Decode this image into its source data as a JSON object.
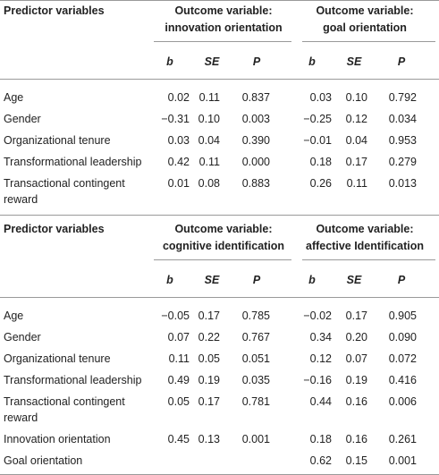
{
  "sections": [
    {
      "header": {
        "predictor": "Predictor variables",
        "outcomes": [
          [
            "Outcome variable:",
            "innovation orientation"
          ],
          [
            "Outcome variable:",
            "goal orientation"
          ]
        ],
        "subheads": [
          "b",
          "SE",
          "P",
          "b",
          "SE",
          "P"
        ]
      },
      "rows": [
        [
          "Age",
          "0.02",
          "0.11",
          "0.837",
          "0.03",
          "0.10",
          "0.792"
        ],
        [
          "Gender",
          "−0.31",
          "0.10",
          "0.003",
          "−0.25",
          "0.12",
          "0.034"
        ],
        [
          "Organizational tenure",
          "0.03",
          "0.04",
          "0.390",
          "−0.01",
          "0.04",
          "0.953"
        ],
        [
          "Transformational leadership",
          "0.42",
          "0.11",
          "0.000",
          "0.18",
          "0.17",
          "0.279"
        ],
        [
          "Transactional contingent reward",
          "0.01",
          "0.08",
          "0.883",
          "0.26",
          "0.11",
          "0.013"
        ]
      ]
    },
    {
      "header": {
        "predictor": "Predictor variables",
        "outcomes": [
          [
            "Outcome variable:",
            "cognitive identification"
          ],
          [
            "Outcome variable:",
            "affective Identification"
          ]
        ],
        "subheads": [
          "b",
          "SE",
          "P",
          "b",
          "SE",
          "P"
        ]
      },
      "rows": [
        [
          "Age",
          "−0.05",
          "0.17",
          "0.785",
          "−0.02",
          "0.17",
          "0.905"
        ],
        [
          "Gender",
          "0.07",
          "0.22",
          "0.767",
          "0.34",
          "0.20",
          "0.090"
        ],
        [
          "Organizational tenure",
          "0.11",
          "0.05",
          "0.051",
          "0.12",
          "0.07",
          "0.072"
        ],
        [
          "Transformational leadership",
          "0.49",
          "0.19",
          "0.035",
          "−0.16",
          "0.19",
          "0.416"
        ],
        [
          "Transactional contingent reward",
          "0.05",
          "0.17",
          "0.781",
          "0.44",
          "0.16",
          "0.006"
        ],
        [
          "Innovation orientation",
          "0.45",
          "0.13",
          "0.001",
          "0.18",
          "0.16",
          "0.261"
        ],
        [
          "Goal orientation",
          null,
          null,
          null,
          "0.62",
          "0.15",
          "0.001"
        ]
      ]
    }
  ]
}
